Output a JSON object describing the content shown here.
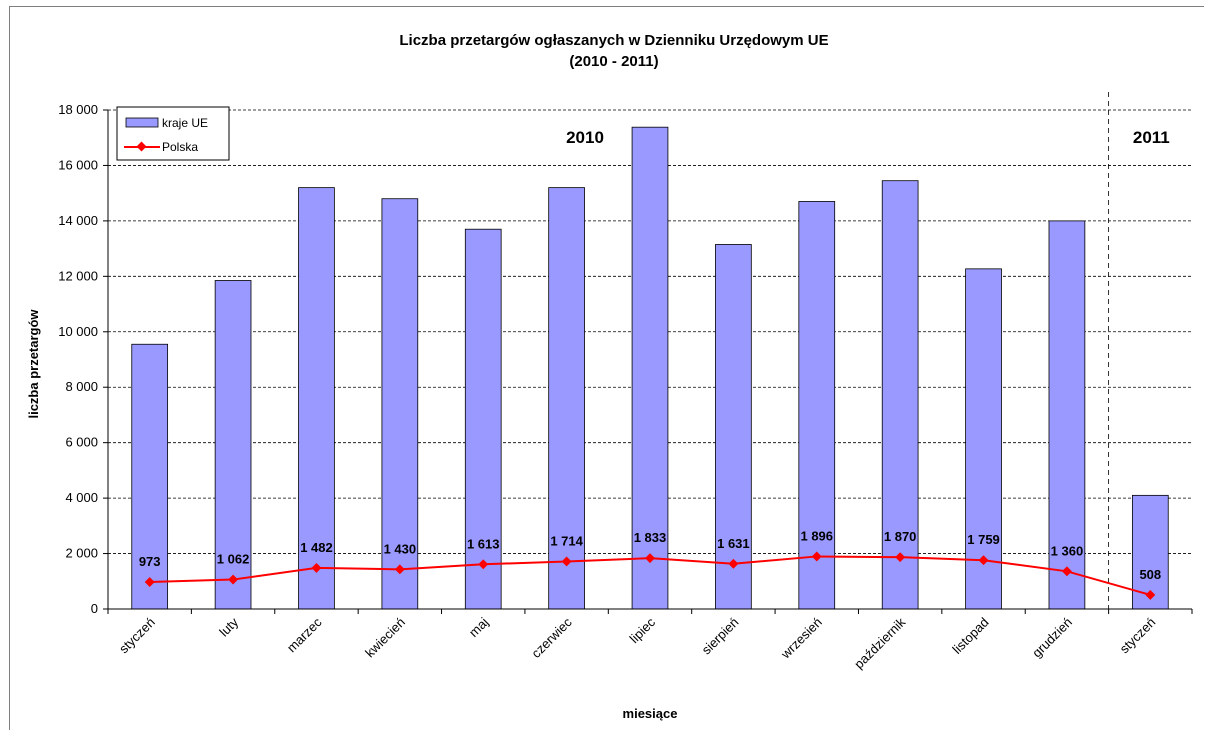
{
  "chart_data": {
    "type": "bar",
    "title": "Liczba przetargów ogłaszanych w Dzienniku Urzędowym UE",
    "subtitle": "(2010 - 2011)",
    "xlabel": "miesiące",
    "ylabel": "liczba przetargów",
    "ylim": [
      0,
      18000
    ],
    "yticks": [
      0,
      2000,
      4000,
      6000,
      8000,
      10000,
      12000,
      14000,
      16000,
      18000
    ],
    "ytick_labels": [
      "0",
      "2 000",
      "4 000",
      "6 000",
      "8 000",
      "10 000",
      "12 000",
      "14 000",
      "16 000",
      "18 000"
    ],
    "grid": true,
    "legend_position": "top-left",
    "categories": [
      "styczeń",
      "luty",
      "marzec",
      "kwiecień",
      "maj",
      "czerwiec",
      "lipiec",
      "sierpień",
      "wrzesień",
      "październik",
      "listopad",
      "grudzień",
      "styczeń"
    ],
    "series": [
      {
        "name": "kraje UE",
        "type": "bar",
        "color": "#9999ff",
        "values": [
          9550,
          11850,
          15200,
          14800,
          13700,
          15200,
          17380,
          13150,
          14700,
          15450,
          12270,
          14000,
          4100
        ]
      },
      {
        "name": "Polska",
        "type": "line",
        "color": "#ff0000",
        "values": [
          973,
          1062,
          1482,
          1430,
          1613,
          1714,
          1833,
          1631,
          1896,
          1870,
          1759,
          1360,
          508
        ],
        "labels": [
          "973",
          "1 062",
          "1 482",
          "1 430",
          "1 613",
          "1 714",
          "1 833",
          "1 631",
          "1 896",
          "1 870",
          "1 759",
          "1 360",
          "508"
        ]
      }
    ],
    "annotations": [
      {
        "text": "2010",
        "between": [
          0,
          11
        ]
      },
      {
        "text": "2011",
        "between": [
          12,
          12
        ]
      }
    ],
    "separator_after_index": 11
  }
}
